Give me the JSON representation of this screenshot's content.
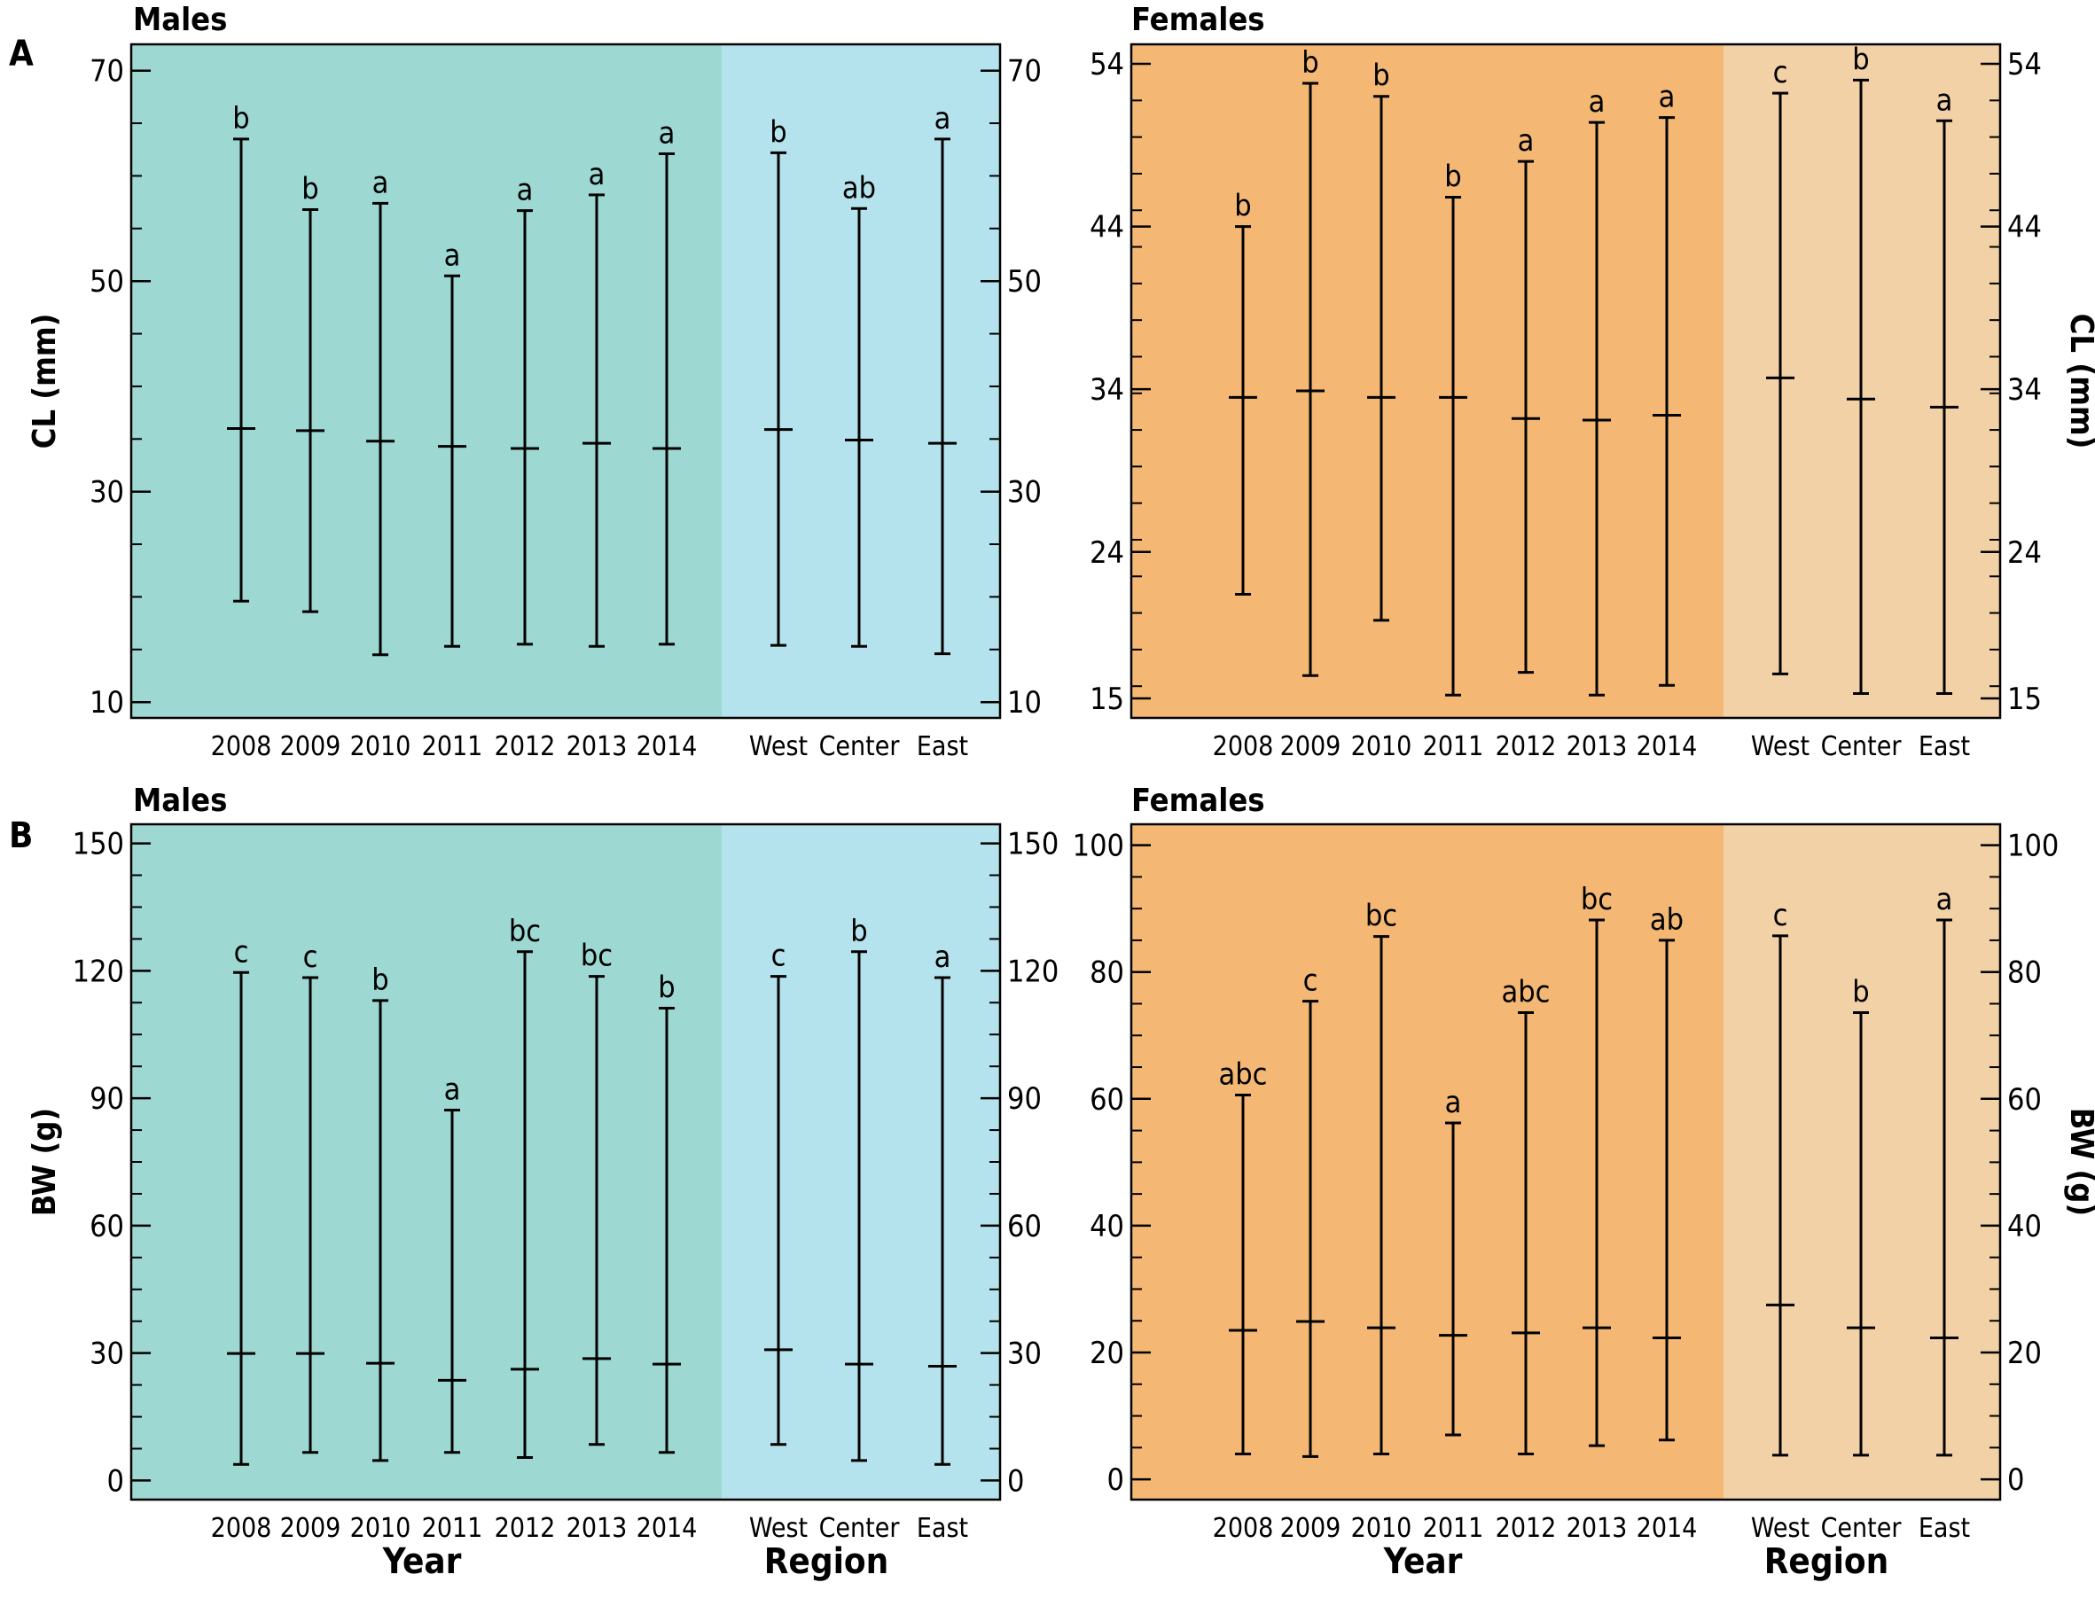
{
  "panels": {
    "A": {
      "letter": "A",
      "males": {
        "title": "Males",
        "ylabel": "CL (mm)",
        "yticks": [
          "10",
          "30",
          "50",
          "70"
        ],
        "ylim": [
          8.5,
          72.5
        ],
        "colors": {
          "year": "#9dd8d3",
          "region": "#b5e3ed"
        },
        "year_categories": [
          "2008",
          "2009",
          "2010",
          "2011",
          "2012",
          "2013",
          "2014"
        ],
        "region_categories": [
          "West",
          "Center",
          "East"
        ],
        "year_bars": [
          {
            "label": "2008",
            "min": 19.6,
            "max": 63.5,
            "mean": 36.0,
            "sig": "b"
          },
          {
            "label": "2009",
            "min": 18.6,
            "max": 56.8,
            "mean": 35.8,
            "sig": "b"
          },
          {
            "label": "2010",
            "min": 14.5,
            "max": 57.4,
            "mean": 34.8,
            "sig": "a"
          },
          {
            "label": "2011",
            "min": 15.3,
            "max": 50.5,
            "mean": 34.3,
            "sig": "a"
          },
          {
            "label": "2012",
            "min": 15.5,
            "max": 56.7,
            "mean": 34.1,
            "sig": "a"
          },
          {
            "label": "2013",
            "min": 15.3,
            "max": 58.2,
            "mean": 34.6,
            "sig": "a"
          },
          {
            "label": "2014",
            "min": 15.5,
            "max": 62.1,
            "mean": 34.1,
            "sig": "a"
          }
        ],
        "region_bars": [
          {
            "label": "West",
            "min": 15.4,
            "max": 62.2,
            "mean": 35.9,
            "sig": "b"
          },
          {
            "label": "Center",
            "min": 15.3,
            "max": 56.9,
            "mean": 34.9,
            "sig": "ab"
          },
          {
            "label": "East",
            "min": 14.6,
            "max": 63.5,
            "mean": 34.6,
            "sig": "a"
          }
        ]
      },
      "females": {
        "title": "Females",
        "ylabel": "CL (mm)",
        "yticks": [
          "15",
          "24",
          "34",
          "44",
          "54"
        ],
        "ylim": [
          13.8,
          55.2
        ],
        "colors": {
          "year": "#f4b874",
          "region": "#f2d1a6"
        },
        "year_categories": [
          "2008",
          "2009",
          "2010",
          "2011",
          "2012",
          "2013",
          "2014"
        ],
        "region_categories": [
          "West",
          "Center",
          "East"
        ],
        "year_bars": [
          {
            "label": "2008",
            "min": 21.4,
            "max": 44.0,
            "mean": 33.5,
            "sig": "b"
          },
          {
            "label": "2009",
            "min": 16.4,
            "max": 52.8,
            "mean": 33.9,
            "sig": "b"
          },
          {
            "label": "2010",
            "min": 19.8,
            "max": 52.0,
            "mean": 33.5,
            "sig": "b"
          },
          {
            "label": "2011",
            "min": 15.2,
            "max": 45.8,
            "mean": 33.5,
            "sig": "b"
          },
          {
            "label": "2012",
            "min": 16.6,
            "max": 48.0,
            "mean": 32.2,
            "sig": "a"
          },
          {
            "label": "2013",
            "min": 15.2,
            "max": 50.4,
            "mean": 32.1,
            "sig": "a"
          },
          {
            "label": "2014",
            "min": 15.8,
            "max": 50.7,
            "mean": 32.4,
            "sig": "a"
          }
        ],
        "region_bars": [
          {
            "label": "West",
            "min": 16.5,
            "max": 52.2,
            "mean": 34.7,
            "sig": "c"
          },
          {
            "label": "Center",
            "min": 15.3,
            "max": 53.0,
            "mean": 33.4,
            "sig": "b"
          },
          {
            "label": "East",
            "min": 15.3,
            "max": 50.5,
            "mean": 32.9,
            "sig": "a"
          }
        ]
      }
    },
    "B": {
      "letter": "B",
      "males": {
        "title": "Males",
        "ylabel": "BW (g)",
        "yticks": [
          "0",
          "30",
          "60",
          "90",
          "120",
          "150"
        ],
        "ylim": [
          -4.5,
          154.5
        ],
        "colors": {
          "year": "#9dd8d3",
          "region": "#b5e3ed"
        },
        "year_categories": [
          "2008",
          "2009",
          "2010",
          "2011",
          "2012",
          "2013",
          "2014"
        ],
        "region_categories": [
          "West",
          "Center",
          "East"
        ],
        "year_bars": [
          {
            "label": "2008",
            "min": 3.8,
            "max": 119.6,
            "mean": 29.9,
            "sig": "c"
          },
          {
            "label": "2009",
            "min": 6.6,
            "max": 118.4,
            "mean": 29.9,
            "sig": "c"
          },
          {
            "label": "2010",
            "min": 4.7,
            "max": 113.0,
            "mean": 27.6,
            "sig": "b"
          },
          {
            "label": "2011",
            "min": 6.6,
            "max": 87.2,
            "mean": 23.6,
            "sig": "a"
          },
          {
            "label": "2012",
            "min": 5.4,
            "max": 124.5,
            "mean": 26.2,
            "sig": "bc"
          },
          {
            "label": "2013",
            "min": 8.5,
            "max": 118.7,
            "mean": 28.7,
            "sig": "bc"
          },
          {
            "label": "2014",
            "min": 6.6,
            "max": 111.2,
            "mean": 27.4,
            "sig": "b"
          }
        ],
        "region_bars": [
          {
            "label": "West",
            "min": 8.5,
            "max": 118.7,
            "mean": 30.8,
            "sig": "c"
          },
          {
            "label": "Center",
            "min": 4.7,
            "max": 124.5,
            "mean": 27.4,
            "sig": "b"
          },
          {
            "label": "East",
            "min": 3.8,
            "max": 118.4,
            "mean": 26.9,
            "sig": "a"
          }
        ]
      },
      "females": {
        "title": "Females",
        "ylabel": "BW (g)",
        "yticks": [
          "0",
          "20",
          "40",
          "60",
          "80",
          "100"
        ],
        "ylim": [
          -3.2,
          103.3
        ],
        "colors": {
          "year": "#f4b874",
          "region": "#f2d1a6"
        },
        "year_categories": [
          "2008",
          "2009",
          "2010",
          "2011",
          "2012",
          "2013",
          "2014"
        ],
        "region_categories": [
          "West",
          "Center",
          "East"
        ],
        "year_bars": [
          {
            "label": "2008",
            "min": 4.0,
            "max": 60.6,
            "mean": 23.5,
            "sig": "abc"
          },
          {
            "label": "2009",
            "min": 3.6,
            "max": 75.4,
            "mean": 24.9,
            "sig": "c"
          },
          {
            "label": "2010",
            "min": 4.0,
            "max": 85.6,
            "mean": 23.9,
            "sig": "bc"
          },
          {
            "label": "2011",
            "min": 7.0,
            "max": 56.2,
            "mean": 22.7,
            "sig": "a"
          },
          {
            "label": "2012",
            "min": 4.0,
            "max": 73.6,
            "mean": 23.1,
            "sig": "abc"
          },
          {
            "label": "2013",
            "min": 5.3,
            "max": 88.2,
            "mean": 23.9,
            "sig": "bc"
          },
          {
            "label": "2014",
            "min": 6.2,
            "max": 85.0,
            "mean": 22.3,
            "sig": "ab"
          }
        ],
        "region_bars": [
          {
            "label": "West",
            "min": 3.8,
            "max": 85.7,
            "mean": 27.5,
            "sig": "c"
          },
          {
            "label": "Center",
            "min": 3.8,
            "max": 73.6,
            "mean": 23.9,
            "sig": "b"
          },
          {
            "label": "East",
            "min": 3.8,
            "max": 88.2,
            "mean": 22.3,
            "sig": "a"
          }
        ]
      }
    }
  },
  "group_labels": {
    "year": "Year",
    "region": "Region"
  },
  "chart_data": [
    {
      "type": "range",
      "panel": "A",
      "title": "Males",
      "ylabel": "CL (mm)",
      "ylim": [
        8.5,
        72.5
      ],
      "categories": [
        "2008",
        "2009",
        "2010",
        "2011",
        "2012",
        "2013",
        "2014",
        "West",
        "Center",
        "East"
      ],
      "series": [
        {
          "name": "min",
          "values": [
            19.6,
            18.6,
            14.5,
            15.3,
            15.5,
            15.3,
            15.5,
            15.4,
            15.3,
            14.6
          ]
        },
        {
          "name": "mean",
          "values": [
            36.0,
            35.8,
            34.8,
            34.3,
            34.1,
            34.6,
            34.1,
            35.9,
            34.9,
            34.6
          ]
        },
        {
          "name": "max",
          "values": [
            63.5,
            56.8,
            57.4,
            50.5,
            56.7,
            58.2,
            62.1,
            62.2,
            56.9,
            63.5
          ]
        }
      ],
      "annotations": [
        "b",
        "b",
        "a",
        "a",
        "a",
        "a",
        "a",
        "b",
        "ab",
        "a"
      ]
    },
    {
      "type": "range",
      "panel": "A",
      "title": "Females",
      "ylabel": "CL (mm)",
      "ylim": [
        13.8,
        55.2
      ],
      "categories": [
        "2008",
        "2009",
        "2010",
        "2011",
        "2012",
        "2013",
        "2014",
        "West",
        "Center",
        "East"
      ],
      "series": [
        {
          "name": "min",
          "values": [
            21.4,
            16.4,
            19.8,
            15.2,
            16.6,
            15.2,
            15.8,
            16.5,
            15.3,
            15.3
          ]
        },
        {
          "name": "mean",
          "values": [
            33.5,
            33.9,
            33.5,
            33.5,
            32.2,
            32.1,
            32.4,
            34.7,
            33.4,
            32.9
          ]
        },
        {
          "name": "max",
          "values": [
            44.0,
            52.8,
            52.0,
            45.8,
            48.0,
            50.4,
            50.7,
            52.2,
            53.0,
            50.5
          ]
        }
      ],
      "annotations": [
        "b",
        "b",
        "b",
        "b",
        "a",
        "a",
        "a",
        "c",
        "b",
        "a"
      ]
    },
    {
      "type": "range",
      "panel": "B",
      "title": "Males",
      "ylabel": "BW (g)",
      "ylim": [
        -4.5,
        154.5
      ],
      "categories": [
        "2008",
        "2009",
        "2010",
        "2011",
        "2012",
        "2013",
        "2014",
        "West",
        "Center",
        "East"
      ],
      "series": [
        {
          "name": "min",
          "values": [
            3.8,
            6.6,
            4.7,
            6.6,
            5.4,
            8.5,
            6.6,
            8.5,
            4.7,
            3.8
          ]
        },
        {
          "name": "mean",
          "values": [
            29.9,
            29.9,
            27.6,
            23.6,
            26.2,
            28.7,
            27.4,
            30.8,
            27.4,
            26.9
          ]
        },
        {
          "name": "max",
          "values": [
            119.6,
            118.4,
            113.0,
            87.2,
            124.5,
            118.7,
            111.2,
            118.7,
            124.5,
            118.4
          ]
        }
      ],
      "annotations": [
        "c",
        "c",
        "b",
        "a",
        "bc",
        "bc",
        "b",
        "c",
        "b",
        "a"
      ]
    },
    {
      "type": "range",
      "panel": "B",
      "title": "Females",
      "ylabel": "BW (g)",
      "ylim": [
        -3.2,
        103.3
      ],
      "categories": [
        "2008",
        "2009",
        "2010",
        "2011",
        "2012",
        "2013",
        "2014",
        "West",
        "Center",
        "East"
      ],
      "series": [
        {
          "name": "min",
          "values": [
            4.0,
            3.6,
            4.0,
            7.0,
            4.0,
            5.3,
            6.2,
            3.8,
            3.8,
            3.8
          ]
        },
        {
          "name": "mean",
          "values": [
            23.5,
            24.9,
            23.9,
            22.7,
            23.1,
            23.9,
            22.3,
            27.5,
            23.9,
            22.3
          ]
        },
        {
          "name": "max",
          "values": [
            60.6,
            75.4,
            85.6,
            56.2,
            73.6,
            88.2,
            85.0,
            85.7,
            73.6,
            88.2
          ]
        }
      ],
      "annotations": [
        "abc",
        "c",
        "bc",
        "a",
        "abc",
        "bc",
        "ab",
        "c",
        "b",
        "a"
      ]
    }
  ]
}
